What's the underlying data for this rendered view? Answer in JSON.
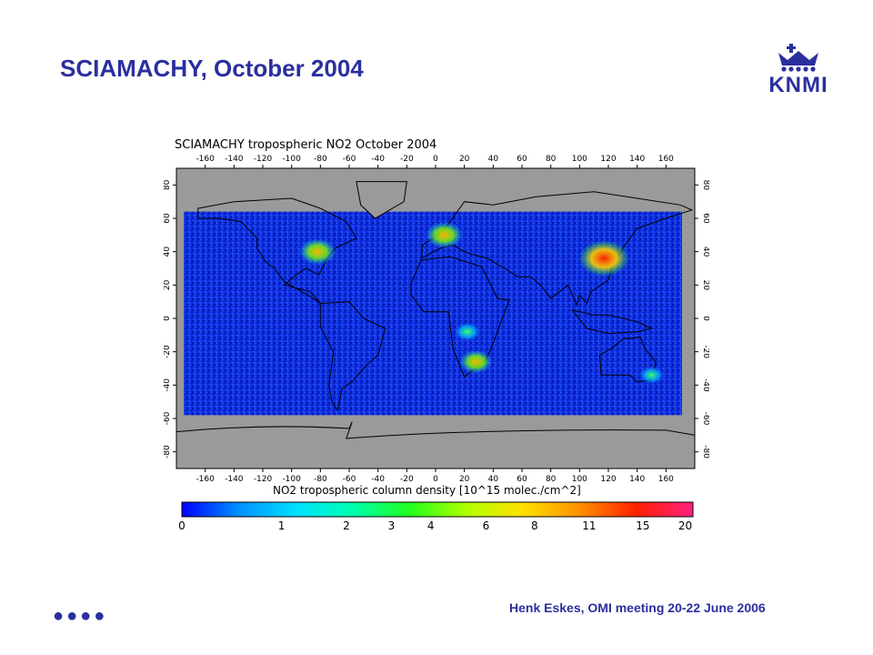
{
  "slide": {
    "title": "SCIAMACHY, October 2004",
    "footer": "Henk Eskes, OMI meeting 20-22 June 2006",
    "dots": "●●●●"
  },
  "logo": {
    "text": "KNMI",
    "icon": "crown-icon",
    "color": "#2b2f9e"
  },
  "chart_data": {
    "type": "heatmap",
    "title": "SCIAMACHY tropospheric NO2   October 2004",
    "colorbar_label": "NO2 tropospheric column density [10^15 molec./cm^2]",
    "x_ticks": [
      -160,
      -140,
      -120,
      -100,
      -80,
      -60,
      -40,
      -20,
      0,
      20,
      40,
      60,
      80,
      100,
      120,
      140,
      160
    ],
    "y_ticks": [
      80,
      60,
      40,
      20,
      0,
      -20,
      -40,
      -60,
      -80
    ],
    "xlim": [
      -180,
      180
    ],
    "ylim": [
      -90,
      90
    ],
    "colorbar_ticks": [
      "0",
      "1",
      "2",
      "3",
      "4",
      "6",
      "8",
      "11",
      "15",
      "20"
    ],
    "colorbar_colors": [
      "#0000ff",
      "#0090ff",
      "#00e0ff",
      "#00ffb0",
      "#20ff20",
      "#b0ff00",
      "#ffe000",
      "#ff9000",
      "#ff2000",
      "#ff2080"
    ],
    "hotspots": [
      {
        "region": "Eastern China",
        "lon": 117,
        "lat": 36,
        "value": 20
      },
      {
        "region": "Eastern USA",
        "lon": -82,
        "lat": 40,
        "value": 11
      },
      {
        "region": "Western Europe",
        "lon": 6,
        "lat": 50,
        "value": 11
      },
      {
        "region": "South Africa Highveld",
        "lon": 28,
        "lat": -26,
        "value": 8
      },
      {
        "region": "Central Africa",
        "lon": 22,
        "lat": -8,
        "value": 4
      },
      {
        "region": "Southeast Australia",
        "lon": 150,
        "lat": -34,
        "value": 3
      }
    ]
  }
}
